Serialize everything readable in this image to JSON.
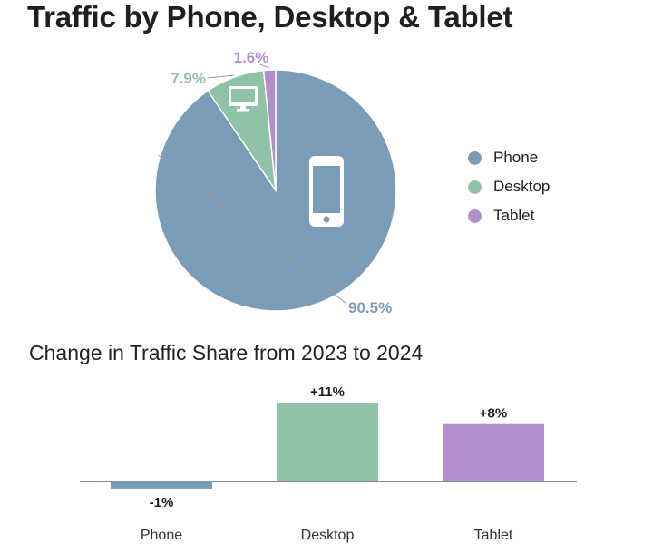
{
  "title": "Traffic by Phone, Desktop & Tablet",
  "colors": {
    "phone": "#7a9cb8",
    "desktop": "#8fc3a8",
    "tablet": "#b08fcc",
    "axis": "#444444"
  },
  "chart_data": [
    {
      "type": "pie",
      "title": "Traffic by Phone, Desktop & Tablet",
      "categories": [
        "Phone",
        "Desktop",
        "Tablet"
      ],
      "values": [
        90.5,
        7.9,
        1.6
      ],
      "labels": [
        "90.5%",
        "7.9%",
        "1.6%"
      ],
      "icons": [
        "phone-icon",
        "desktop-icon",
        ""
      ],
      "legend": [
        "Phone",
        "Desktop",
        "Tablet"
      ],
      "legend_position": "right"
    },
    {
      "type": "bar",
      "title": "Change in Traffic Share from 2023 to 2024",
      "categories": [
        "Phone",
        "Desktop",
        "Tablet"
      ],
      "values": [
        -1,
        11,
        8
      ],
      "labels": [
        "-1%",
        "+11%",
        "+8%"
      ],
      "ylim": [
        -1,
        11
      ]
    }
  ]
}
